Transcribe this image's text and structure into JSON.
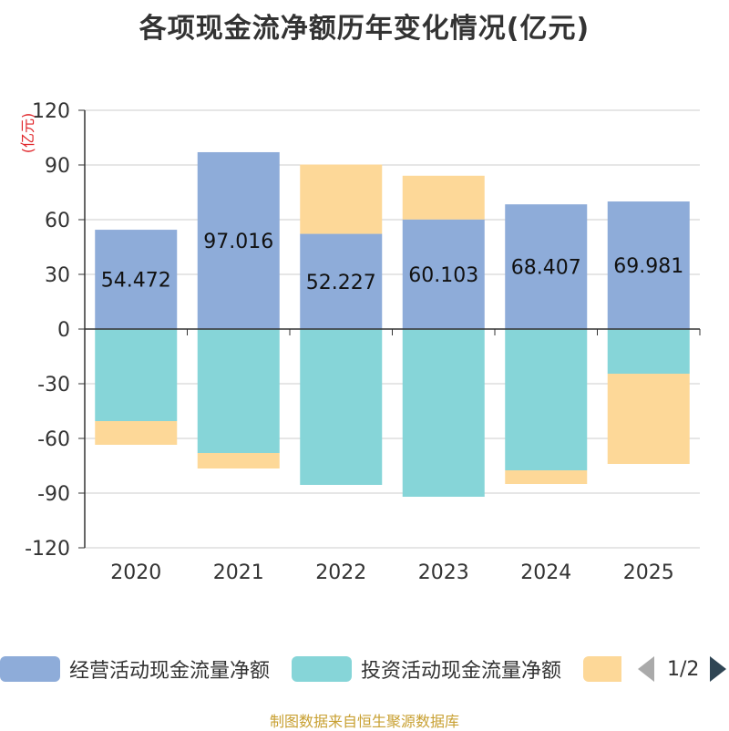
{
  "chart_data": {
    "type": "bar",
    "stacked": true,
    "title": "各项现金流净额历年变化情况(亿元)",
    "ylabel": "(亿元)",
    "categories": [
      "2020",
      "2021",
      "2022",
      "2023",
      "2024",
      "2025"
    ],
    "ylim": [
      -120,
      120
    ],
    "yticks": [
      120,
      90,
      60,
      30,
      0,
      -30,
      -60,
      -90,
      -120
    ],
    "grid": true,
    "series": [
      {
        "name": "经营活动现金流量净额",
        "color": "#8eacd9",
        "values": [
          54.472,
          97.016,
          52.227,
          60.103,
          68.407,
          69.981
        ],
        "labels": [
          "54.472",
          "97.016",
          "52.227",
          "60.103",
          "68.407",
          "69.981"
        ]
      },
      {
        "name": "投资活动现金流量净额",
        "color": "#86d5d8",
        "values": [
          -50.5,
          -68,
          -85.5,
          -92,
          -77.5,
          -24.5
        ]
      },
      {
        "name": "",
        "color": "#fdd898",
        "values": [
          -13,
          -8.5,
          38,
          24,
          -7.5,
          -49.5
        ]
      }
    ]
  },
  "legend": {
    "items": [
      {
        "label": "经营活动现金流量净额",
        "color": "#8eacd9"
      },
      {
        "label": "投资活动现金流量净额",
        "color": "#86d5d8"
      },
      {
        "label": "",
        "color": "#fdd898"
      }
    ],
    "page": "1/2"
  },
  "footer": "制图数据来自恒生聚源数据库"
}
